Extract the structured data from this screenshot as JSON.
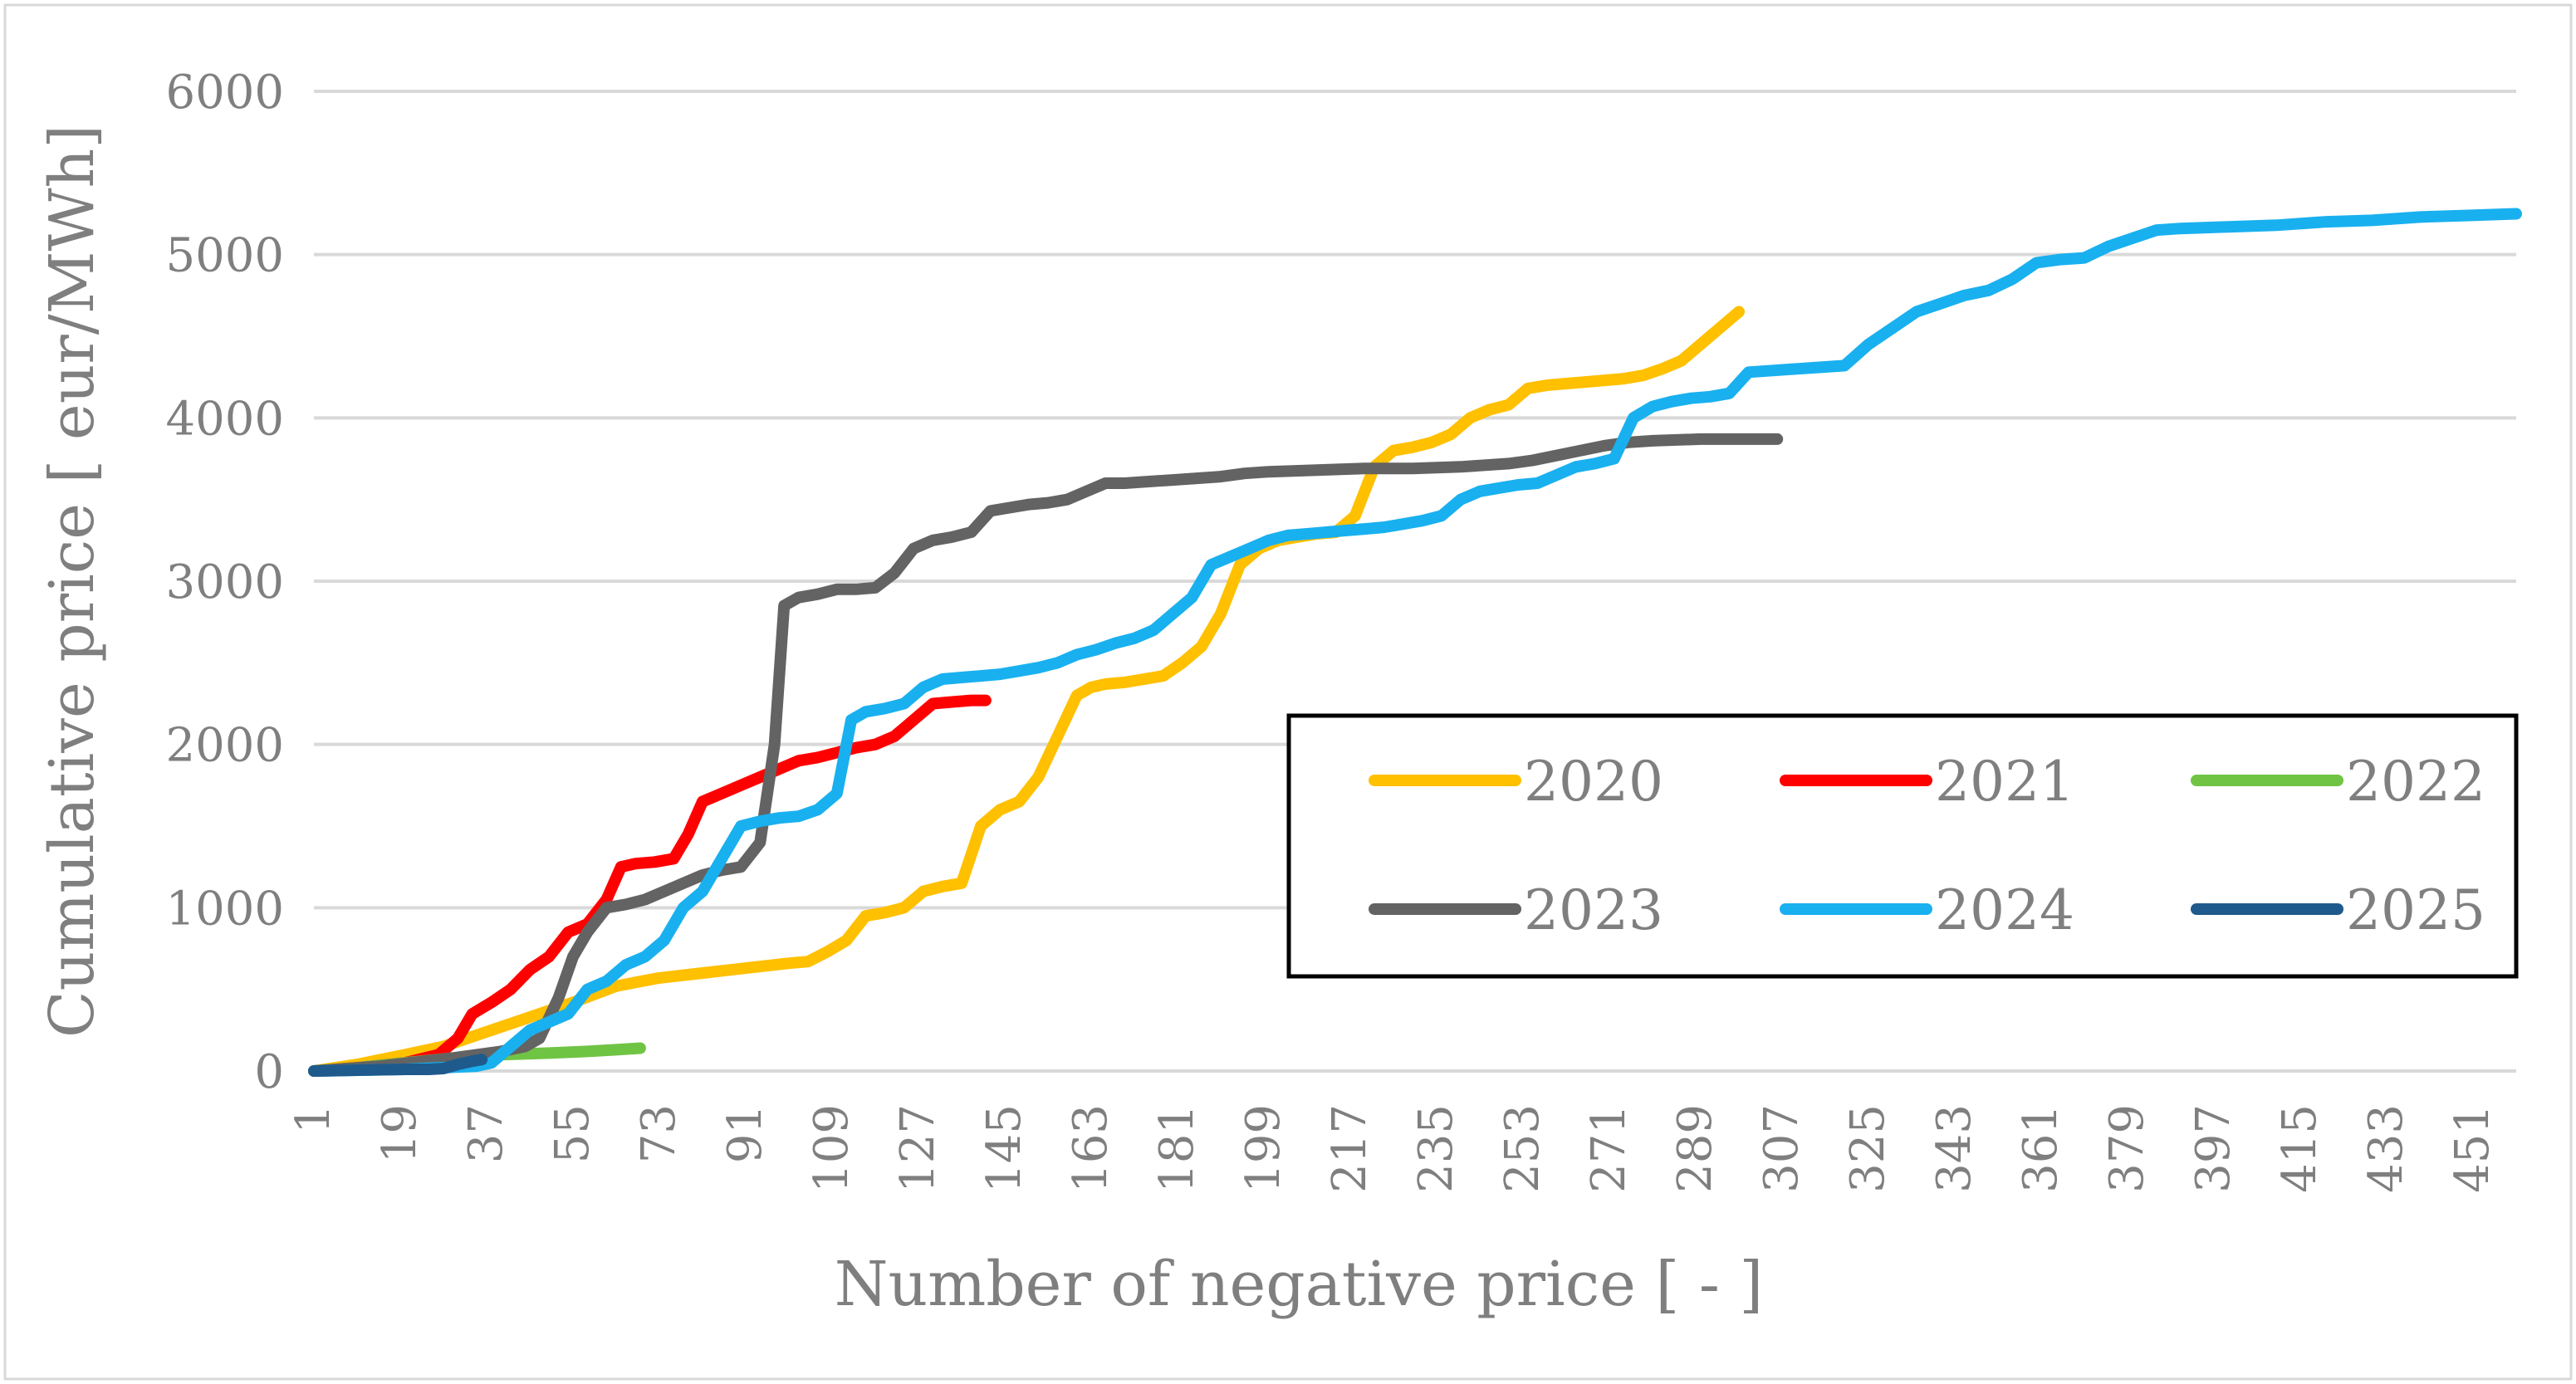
{
  "chart_data": {
    "type": "line",
    "title": "",
    "xlabel": "Number of negative price [ - ]",
    "ylabel": "Cumulative price [ eur/MWh]",
    "xlim": [
      1,
      460
    ],
    "ylim": [
      0,
      6000
    ],
    "grid": true,
    "legend": {
      "placement": "center-right",
      "columns": 3
    },
    "x_tick_labels": [
      "1",
      "19",
      "37",
      "55",
      "73",
      "91",
      "109",
      "127",
      "145",
      "163",
      "181",
      "199",
      "217",
      "235",
      "253",
      "271",
      "289",
      "307",
      "325",
      "343",
      "361",
      "379",
      "397",
      "415",
      "433",
      "451"
    ],
    "y_tick_labels": [
      "0",
      "1000",
      "2000",
      "3000",
      "4000",
      "5000",
      "6000"
    ],
    "series": [
      {
        "name": "2020",
        "color": "#ffc000",
        "x": [
          1,
          10,
          20,
          28,
          36,
          45,
          55,
          64,
          73,
          82,
          91,
          100,
          104,
          108,
          112,
          116,
          120,
          124,
          128,
          132,
          136,
          140,
          144,
          148,
          152,
          156,
          160,
          163,
          166,
          170,
          174,
          178,
          182,
          186,
          190,
          194,
          198,
          202,
          206,
          210,
          214,
          218,
          222,
          226,
          230,
          234,
          238,
          242,
          246,
          250,
          254,
          258,
          262,
          266,
          270,
          274,
          278,
          282,
          286,
          290,
          294,
          298
        ],
        "y": [
          0,
          40,
          100,
          150,
          230,
          320,
          420,
          520,
          570,
          600,
          630,
          660,
          670,
          730,
          800,
          950,
          970,
          1000,
          1100,
          1130,
          1150,
          1500,
          1600,
          1650,
          1800,
          2050,
          2300,
          2350,
          2370,
          2380,
          2400,
          2420,
          2500,
          2600,
          2800,
          3100,
          3200,
          3250,
          3270,
          3290,
          3300,
          3400,
          3700,
          3800,
          3820,
          3850,
          3900,
          4000,
          4050,
          4080,
          4180,
          4200,
          4210,
          4220,
          4230,
          4240,
          4260,
          4300,
          4350,
          4450,
          4550,
          4650
        ]
      },
      {
        "name": "2021",
        "color": "#ff0000",
        "x": [
          1,
          10,
          20,
          27,
          31,
          34,
          38,
          42,
          46,
          50,
          54,
          58,
          62,
          65,
          68,
          72,
          76,
          79,
          82,
          86,
          90,
          94,
          98,
          102,
          106,
          110,
          114,
          118,
          122,
          126,
          130,
          134,
          138,
          141
        ],
        "y": [
          0,
          20,
          50,
          100,
          200,
          350,
          420,
          500,
          620,
          700,
          850,
          900,
          1050,
          1250,
          1270,
          1280,
          1300,
          1450,
          1650,
          1700,
          1750,
          1800,
          1850,
          1900,
          1920,
          1950,
          1980,
          2000,
          2050,
          2150,
          2250,
          2260,
          2270,
          2270
        ]
      },
      {
        "name": "2022",
        "color": "#70c444",
        "x": [
          1,
          10,
          20,
          30,
          40,
          50,
          58,
          64,
          69
        ],
        "y": [
          0,
          20,
          50,
          80,
          100,
          110,
          120,
          130,
          140
        ]
      },
      {
        "name": "2023",
        "color": "#636363",
        "x": [
          1,
          15,
          30,
          40,
          45,
          48,
          52,
          55,
          58,
          62,
          66,
          70,
          74,
          78,
          82,
          86,
          90,
          94,
          97,
          99,
          102,
          106,
          110,
          114,
          118,
          122,
          126,
          130,
          134,
          138,
          142,
          146,
          150,
          154,
          158,
          162,
          166,
          170,
          175,
          180,
          185,
          190,
          195,
          200,
          210,
          220,
          230,
          240,
          250,
          255,
          260,
          265,
          270,
          275,
          280,
          290,
          300,
          306
        ],
        "y": [
          0,
          30,
          80,
          120,
          150,
          200,
          450,
          700,
          850,
          1000,
          1020,
          1050,
          1100,
          1150,
          1200,
          1230,
          1250,
          1400,
          2000,
          2850,
          2900,
          2920,
          2950,
          2950,
          2960,
          3050,
          3200,
          3250,
          3270,
          3300,
          3430,
          3450,
          3470,
          3480,
          3500,
          3550,
          3600,
          3600,
          3610,
          3620,
          3630,
          3640,
          3660,
          3670,
          3680,
          3690,
          3690,
          3700,
          3720,
          3740,
          3770,
          3800,
          3830,
          3850,
          3860,
          3870,
          3870,
          3870
        ]
      },
      {
        "name": "2024",
        "color": "#19b0ef",
        "x": [
          1,
          20,
          35,
          38,
          42,
          46,
          50,
          54,
          58,
          62,
          66,
          70,
          74,
          78,
          82,
          86,
          90,
          94,
          98,
          102,
          106,
          110,
          113,
          116,
          120,
          124,
          128,
          132,
          136,
          140,
          144,
          148,
          152,
          156,
          160,
          164,
          168,
          172,
          176,
          180,
          184,
          188,
          192,
          196,
          200,
          204,
          208,
          212,
          216,
          220,
          224,
          228,
          232,
          236,
          240,
          244,
          248,
          252,
          256,
          260,
          264,
          268,
          272,
          276,
          280,
          284,
          288,
          292,
          296,
          300,
          305,
          310,
          315,
          320,
          325,
          330,
          335,
          340,
          345,
          350,
          355,
          360,
          365,
          370,
          375,
          380,
          385,
          390,
          400,
          410,
          420,
          430,
          440,
          450,
          460
        ],
        "y": [
          0,
          10,
          30,
          50,
          150,
          250,
          300,
          350,
          500,
          550,
          650,
          700,
          800,
          1000,
          1100,
          1300,
          1500,
          1530,
          1550,
          1560,
          1600,
          1700,
          2150,
          2200,
          2220,
          2250,
          2350,
          2400,
          2410,
          2420,
          2430,
          2450,
          2470,
          2500,
          2550,
          2580,
          2620,
          2650,
          2700,
          2800,
          2900,
          3100,
          3150,
          3200,
          3250,
          3280,
          3290,
          3300,
          3310,
          3320,
          3330,
          3350,
          3370,
          3400,
          3500,
          3550,
          3570,
          3590,
          3600,
          3650,
          3700,
          3720,
          3750,
          4000,
          4070,
          4100,
          4120,
          4130,
          4150,
          4280,
          4290,
          4300,
          4310,
          4320,
          4450,
          4550,
          4650,
          4700,
          4750,
          4780,
          4850,
          4950,
          4970,
          4980,
          5050,
          5100,
          5150,
          5160,
          5170,
          5180,
          5200,
          5210,
          5230,
          5240,
          5250
        ]
      },
      {
        "name": "2025",
        "color": "#1f5a8c",
        "x": [
          1,
          10,
          20,
          25,
          28,
          31,
          34,
          36
        ],
        "y": [
          0,
          5,
          10,
          10,
          15,
          40,
          60,
          70
        ]
      }
    ]
  }
}
